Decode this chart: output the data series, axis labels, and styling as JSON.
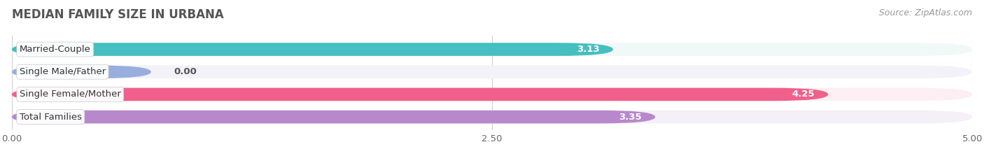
{
  "title": "MEDIAN FAMILY SIZE IN URBANA",
  "source": "Source: ZipAtlas.com",
  "categories": [
    "Married-Couple",
    "Single Male/Father",
    "Single Female/Mother",
    "Total Families"
  ],
  "values": [
    3.13,
    0.0,
    4.25,
    3.35
  ],
  "bar_colors": [
    "#45bfbf",
    "#99aedd",
    "#f0608a",
    "#b888cc"
  ],
  "bar_bg_colors": [
    "#f0f8f8",
    "#f2f2f8",
    "#fdeef4",
    "#f5eff8"
  ],
  "stub_color": "#aabde8",
  "xlim": [
    0,
    5.0
  ],
  "xticks": [
    0.0,
    2.5,
    5.0
  ],
  "tick_labels": [
    "0.00",
    "2.50",
    "5.00"
  ],
  "label_fontsize": 9.5,
  "value_fontsize": 9.5,
  "title_fontsize": 12,
  "source_fontsize": 9,
  "bar_height": 0.58,
  "bar_gap": 0.42
}
